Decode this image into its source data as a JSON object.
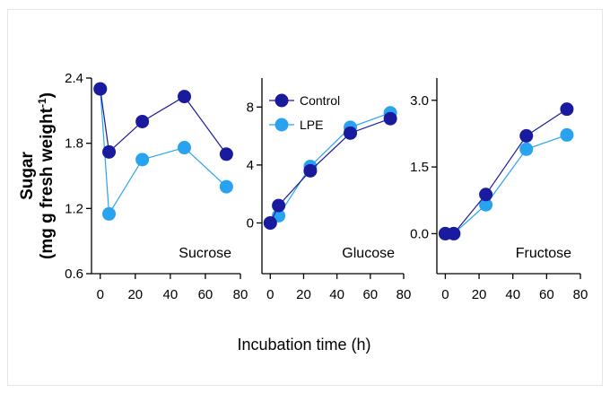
{
  "chart_data": {
    "type": "line",
    "ylabel": "Sugar",
    "ylabel_units_prefix": "(mg g fresh weight",
    "ylabel_units_exponent": "-1",
    "ylabel_units_suffix": ")",
    "xlabel": "Incubation time (h)",
    "legend": [
      "Control",
      "LPE"
    ],
    "legend_placement": "top-left of middle panel",
    "colors": {
      "Control": "#1a1a9e",
      "LPE": "#29a3f0",
      "axis": "#000000"
    },
    "panels": [
      {
        "label": "Sucrose",
        "xlim": [
          -5,
          80
        ],
        "ylim": [
          0.6,
          2.4
        ],
        "xticks": [
          0,
          20,
          40,
          60,
          80
        ],
        "xtick_labels": [
          "0",
          "20",
          "40",
          "60",
          "80"
        ],
        "yticks": [
          0.6,
          1.2,
          1.8,
          2.4
        ],
        "ytick_labels": [
          "0.6",
          "1.2",
          "1.8",
          "2.4"
        ],
        "series": [
          {
            "name": "Control",
            "x": [
              0,
              5,
              24,
              48,
              72
            ],
            "y": [
              2.3,
              1.72,
              2.0,
              2.23,
              1.7
            ]
          },
          {
            "name": "LPE",
            "x": [
              0,
              5,
              24,
              48,
              72
            ],
            "y": [
              2.3,
              1.15,
              1.65,
              1.76,
              1.4
            ]
          }
        ]
      },
      {
        "label": "Glucose",
        "xlim": [
          -5,
          80
        ],
        "ylim": [
          -3.5,
          10
        ],
        "xticks": [
          0,
          20,
          40,
          60,
          80
        ],
        "xtick_labels": [
          "0",
          "20",
          "40",
          "60",
          "80"
        ],
        "yticks": [
          0,
          4,
          8
        ],
        "ytick_labels": [
          "0",
          "4",
          "8"
        ],
        "series": [
          {
            "name": "Control",
            "x": [
              0,
              5,
              24,
              48,
              72
            ],
            "y": [
              0.0,
              1.2,
              3.6,
              6.2,
              7.2
            ]
          },
          {
            "name": "LPE",
            "x": [
              0,
              5,
              24,
              48,
              72
            ],
            "y": [
              0.0,
              0.5,
              3.9,
              6.6,
              7.6
            ]
          }
        ]
      },
      {
        "label": "Fructose",
        "xlim": [
          -5,
          80
        ],
        "ylim": [
          -0.9,
          3.5
        ],
        "xticks": [
          0,
          20,
          40,
          60,
          80
        ],
        "xtick_labels": [
          "0",
          "20",
          "40",
          "60",
          "80"
        ],
        "yticks": [
          0.0,
          1.5,
          3.0
        ],
        "ytick_labels": [
          "0.0",
          "1.5",
          "3.0"
        ],
        "series": [
          {
            "name": "Control",
            "x": [
              0,
              5,
              24,
              48,
              72
            ],
            "y": [
              0.0,
              0.0,
              0.88,
              2.2,
              2.8
            ]
          },
          {
            "name": "LPE",
            "x": [
              0,
              5,
              24,
              48,
              72
            ],
            "y": [
              0.0,
              0.0,
              0.65,
              1.9,
              2.22
            ]
          }
        ]
      }
    ]
  }
}
